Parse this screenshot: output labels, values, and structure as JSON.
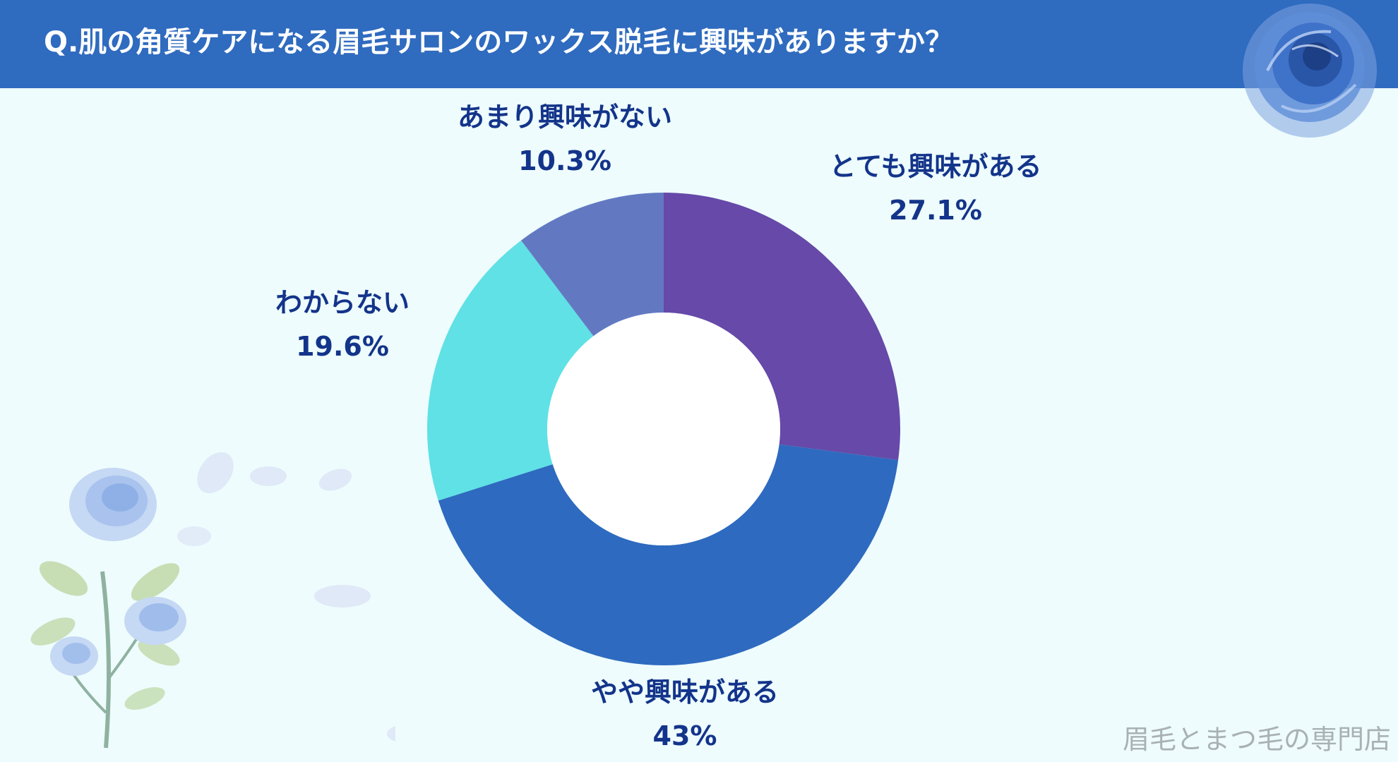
{
  "header": {
    "title": "Q.肌の角質ケアになる眉毛サロンのワックス脱毛に興味がありますか？",
    "background": "#2f6bbf"
  },
  "chart_data": {
    "type": "donut",
    "title": "Q.肌の角質ケアになる眉毛サロンのワックス脱毛に興味がありますか？",
    "categories": [
      "とても興味がある",
      "やや興味がある",
      "わからない",
      "あまり興味がない"
    ],
    "values": [
      27.1,
      43,
      19.6,
      10.3
    ],
    "value_labels": [
      "27.1%",
      "43%",
      "19.6%",
      "10.3%"
    ],
    "colors": [
      "#6649a8",
      "#2e6abf",
      "#5fe1e6",
      "#6279c2"
    ],
    "start": "12 o'clock",
    "direction": "clockwise",
    "legend": "none",
    "label_color": "#13348a"
  },
  "footer": {
    "watermark": "眉毛とまつ毛の専門店"
  },
  "decorations": {
    "top_right": "blue-rose",
    "bottom_left": "blue-rose-branch-with-petals"
  }
}
